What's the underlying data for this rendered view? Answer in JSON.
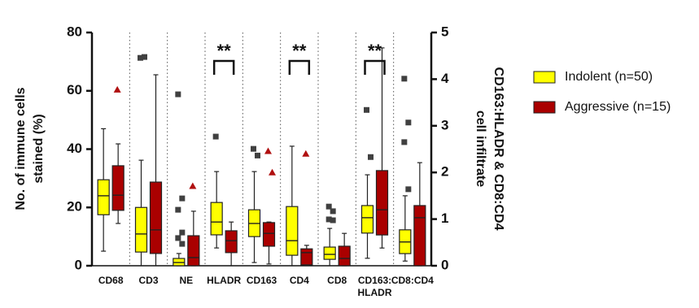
{
  "chart_data": {
    "type": "box",
    "categories": [
      "CD68",
      "CD3",
      "NE",
      "HLADR",
      "CD163",
      "CD4",
      "CD8",
      "CD163:\nHLADR",
      "CD8:CD4"
    ],
    "category_axes": [
      "y",
      "y",
      "y",
      "y",
      "y",
      "y",
      "y",
      "y2",
      "y2"
    ],
    "ylabel": [
      "No. of immune cells",
      "stained (%)"
    ],
    "y2label": [
      "CD163:HLADR & CD8:CD4",
      "cell infiltrate"
    ],
    "ylim": [
      0,
      80
    ],
    "yticks": [
      0,
      20,
      40,
      60,
      80
    ],
    "y2lim": [
      0,
      5
    ],
    "y2ticks": [
      0,
      1,
      2,
      3,
      4,
      5
    ],
    "annotations": [
      {
        "text": "**",
        "category": 3
      },
      {
        "text": "**",
        "category": 5
      },
      {
        "text": "**",
        "category": 7
      }
    ],
    "series": [
      {
        "name": "Indolent (n=50)",
        "color": "#ffff00",
        "outlier_color": "#404040",
        "outlier_marker": "square",
        "boxes": [
          {
            "min": 5,
            "q1": 17.5,
            "median": 24,
            "q3": 29.5,
            "max": 47,
            "outliers": []
          },
          {
            "min": 0,
            "q1": 4.7,
            "median": 10.9,
            "q3": 20,
            "max": 36.2,
            "outliers": [
              71.3,
              71.6
            ]
          },
          {
            "min": 0,
            "q1": 0,
            "median": 1.1,
            "q3": 2.5,
            "max": 4.2,
            "outliers": [
              58.8,
              23.1,
              19.2,
              11.4,
              9.5,
              7.5
            ]
          },
          {
            "min": 6.1,
            "q1": 10.6,
            "median": 15,
            "q3": 21.7,
            "max": 32.3,
            "outliers": [
              44.3
            ]
          },
          {
            "min": 1.1,
            "q1": 10,
            "median": 14.5,
            "q3": 19.2,
            "max": 32.3,
            "outliers": [
              40.1,
              37.8
            ]
          },
          {
            "min": 0,
            "q1": 3.6,
            "median": 8.6,
            "q3": 20.3,
            "max": 41,
            "outliers": []
          },
          {
            "min": 0,
            "q1": 2.2,
            "median": 3.9,
            "q3": 6.4,
            "max": 12.8,
            "outliers": [
              20.3,
              18.7,
              15.9,
              15.6
            ]
          },
          {
            "min": 0.16,
            "q1": 0.7,
            "median": 1.03,
            "q3": 1.29,
            "max": 1.95,
            "outliers": [
              3.34,
              2.33
            ]
          },
          {
            "min": 0.1,
            "q1": 0.26,
            "median": 0.51,
            "q3": 0.77,
            "max": 1.5,
            "outliers": [
              4.01,
              3.07,
              2.65,
              1.64
            ]
          }
        ]
      },
      {
        "name": "Aggressive (n=15)",
        "color": "#aa0000",
        "outlier_color": "#b01010",
        "outlier_marker": "triangle",
        "boxes": [
          {
            "min": 14.5,
            "q1": 19,
            "median": 24.2,
            "q3": 34.3,
            "max": 41.8,
            "outliers": [
              60.4
            ]
          },
          {
            "min": 0,
            "q1": 4.2,
            "median": 12.3,
            "q3": 28.7,
            "max": 65.5,
            "outliers": []
          },
          {
            "min": 0,
            "q1": 0,
            "median": 2.8,
            "q3": 10.3,
            "max": 18.7,
            "outliers": [
              27.3
            ]
          },
          {
            "min": 0,
            "q1": 4.5,
            "median": 8.6,
            "q3": 12,
            "max": 15,
            "outliers": []
          },
          {
            "min": 0.6,
            "q1": 6.7,
            "median": 11.1,
            "q3": 14.8,
            "max": 15,
            "outliers": [
              39.3,
              32
            ]
          },
          {
            "min": 0,
            "q1": 0.3,
            "median": 4.5,
            "q3": 5.8,
            "max": 7,
            "outliers": [
              38.4
            ]
          },
          {
            "min": 0,
            "q1": 0,
            "median": 2.5,
            "q3": 6.7,
            "max": 11.1,
            "outliers": []
          },
          {
            "min": 0.38,
            "q1": 0.66,
            "median": 1.2,
            "q3": 2.04,
            "max": 4.67,
            "outliers": []
          },
          {
            "min": 0,
            "q1": 0,
            "median": 1.03,
            "q3": 1.29,
            "max": 2.21,
            "outliers": []
          }
        ]
      }
    ]
  }
}
